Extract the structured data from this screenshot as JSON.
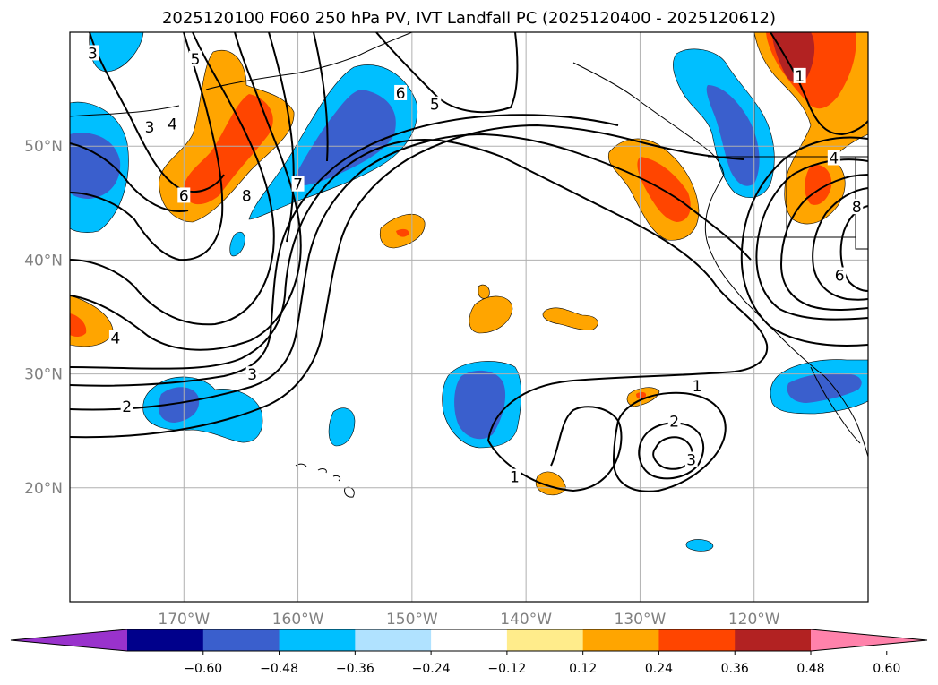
{
  "title": "2025120100 F060 250 hPa PV, IVT Landfall PC (2025120400 - 2025120612)",
  "map": {
    "lat_ticks": [
      {
        "label": "50°N",
        "lat": 50
      },
      {
        "label": "40°N",
        "lat": 40
      },
      {
        "label": "30°N",
        "lat": 30
      },
      {
        "label": "20°N",
        "lat": 20
      }
    ],
    "lon_ticks": [
      {
        "label": "170°W",
        "lon": -170
      },
      {
        "label": "160°W",
        "lon": -160
      },
      {
        "label": "150°W",
        "lon": -150
      },
      {
        "label": "140°W",
        "lon": -140
      },
      {
        "label": "130°W",
        "lon": -130
      },
      {
        "label": "120°W",
        "lon": -120
      }
    ],
    "extent": {
      "lon_min": -180,
      "lon_max": -110,
      "lat_min": 10,
      "lat_max": 60
    },
    "gridlines": true
  },
  "colorbar": {
    "ticks": [
      "−0.60",
      "−0.48",
      "−0.36",
      "−0.24",
      "−0.12",
      "0.12",
      "0.24",
      "0.36",
      "0.48",
      "0.60"
    ],
    "bounds": [
      -0.6,
      -0.48,
      -0.36,
      -0.24,
      -0.12,
      0.12,
      0.24,
      0.36,
      0.48,
      0.6
    ],
    "colors": [
      "#9932cc",
      "#00008b",
      "#3a5fcd",
      "#00bfff",
      "#b0e2ff",
      "#ffffff",
      "#ffec8b",
      "#ffa500",
      "#ff4500",
      "#b22222",
      "#ff82ab"
    ],
    "extend": "both"
  },
  "contour_labels": [
    {
      "text": "3",
      "lon": -178,
      "lat": 58
    },
    {
      "text": "5",
      "lon": -169,
      "lat": 57.5
    },
    {
      "text": "3",
      "lon": -173,
      "lat": 51.5
    },
    {
      "text": "4",
      "lon": -171,
      "lat": 51.8
    },
    {
      "text": "6",
      "lon": -170,
      "lat": 45.5
    },
    {
      "text": "8",
      "lon": -164.5,
      "lat": 45.5
    },
    {
      "text": "7",
      "lon": -160,
      "lat": 46.5
    },
    {
      "text": "6",
      "lon": -151,
      "lat": 54.5
    },
    {
      "text": "5",
      "lon": -148,
      "lat": 53.5
    },
    {
      "text": "4",
      "lon": -176,
      "lat": 33
    },
    {
      "text": "3",
      "lon": -164,
      "lat": 29.8
    },
    {
      "text": "2",
      "lon": -175,
      "lat": 27
    },
    {
      "text": "1",
      "lon": -125,
      "lat": 28.8
    },
    {
      "text": "2",
      "lon": -127,
      "lat": 25.7
    },
    {
      "text": "3",
      "lon": -125.5,
      "lat": 22.3
    },
    {
      "text": "1",
      "lon": -141,
      "lat": 20.8
    },
    {
      "text": "4",
      "lon": -113,
      "lat": 48.8
    },
    {
      "text": "8",
      "lon": -111,
      "lat": 44.5
    },
    {
      "text": "6",
      "lon": -112.5,
      "lat": 38.5
    },
    {
      "text": "1",
      "lon": -116,
      "lat": 56
    }
  ]
}
